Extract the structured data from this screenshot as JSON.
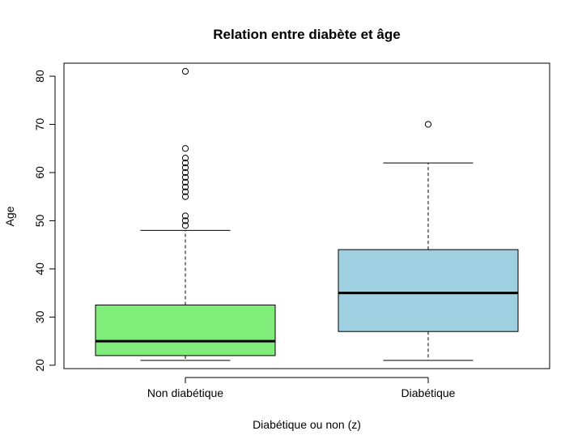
{
  "chart_data": {
    "type": "boxplot",
    "title": "Relation entre diabète et âge",
    "xlabel": "Diabétique ou non (z)",
    "ylabel": "Age",
    "ylim": [
      19.3,
      82.7
    ],
    "yticks": [
      20,
      30,
      40,
      50,
      60,
      70,
      80
    ],
    "categories": [
      "Non diabétique",
      "Diabétique"
    ],
    "boxes": [
      {
        "category": "Non diabétique",
        "color": "#80ED7A",
        "whisker_low": 21,
        "q1": 22,
        "median": 25,
        "q3": 32.5,
        "whisker_high": 48,
        "outliers": [
          49,
          50,
          51,
          55,
          56,
          57,
          58,
          59,
          60,
          61,
          62,
          63,
          65,
          81
        ]
      },
      {
        "category": "Diabétique",
        "color": "#9FD0E1",
        "whisker_low": 21,
        "q1": 27,
        "median": 35,
        "q3": 44,
        "whisker_high": 62,
        "outliers": [
          70
        ]
      }
    ]
  }
}
